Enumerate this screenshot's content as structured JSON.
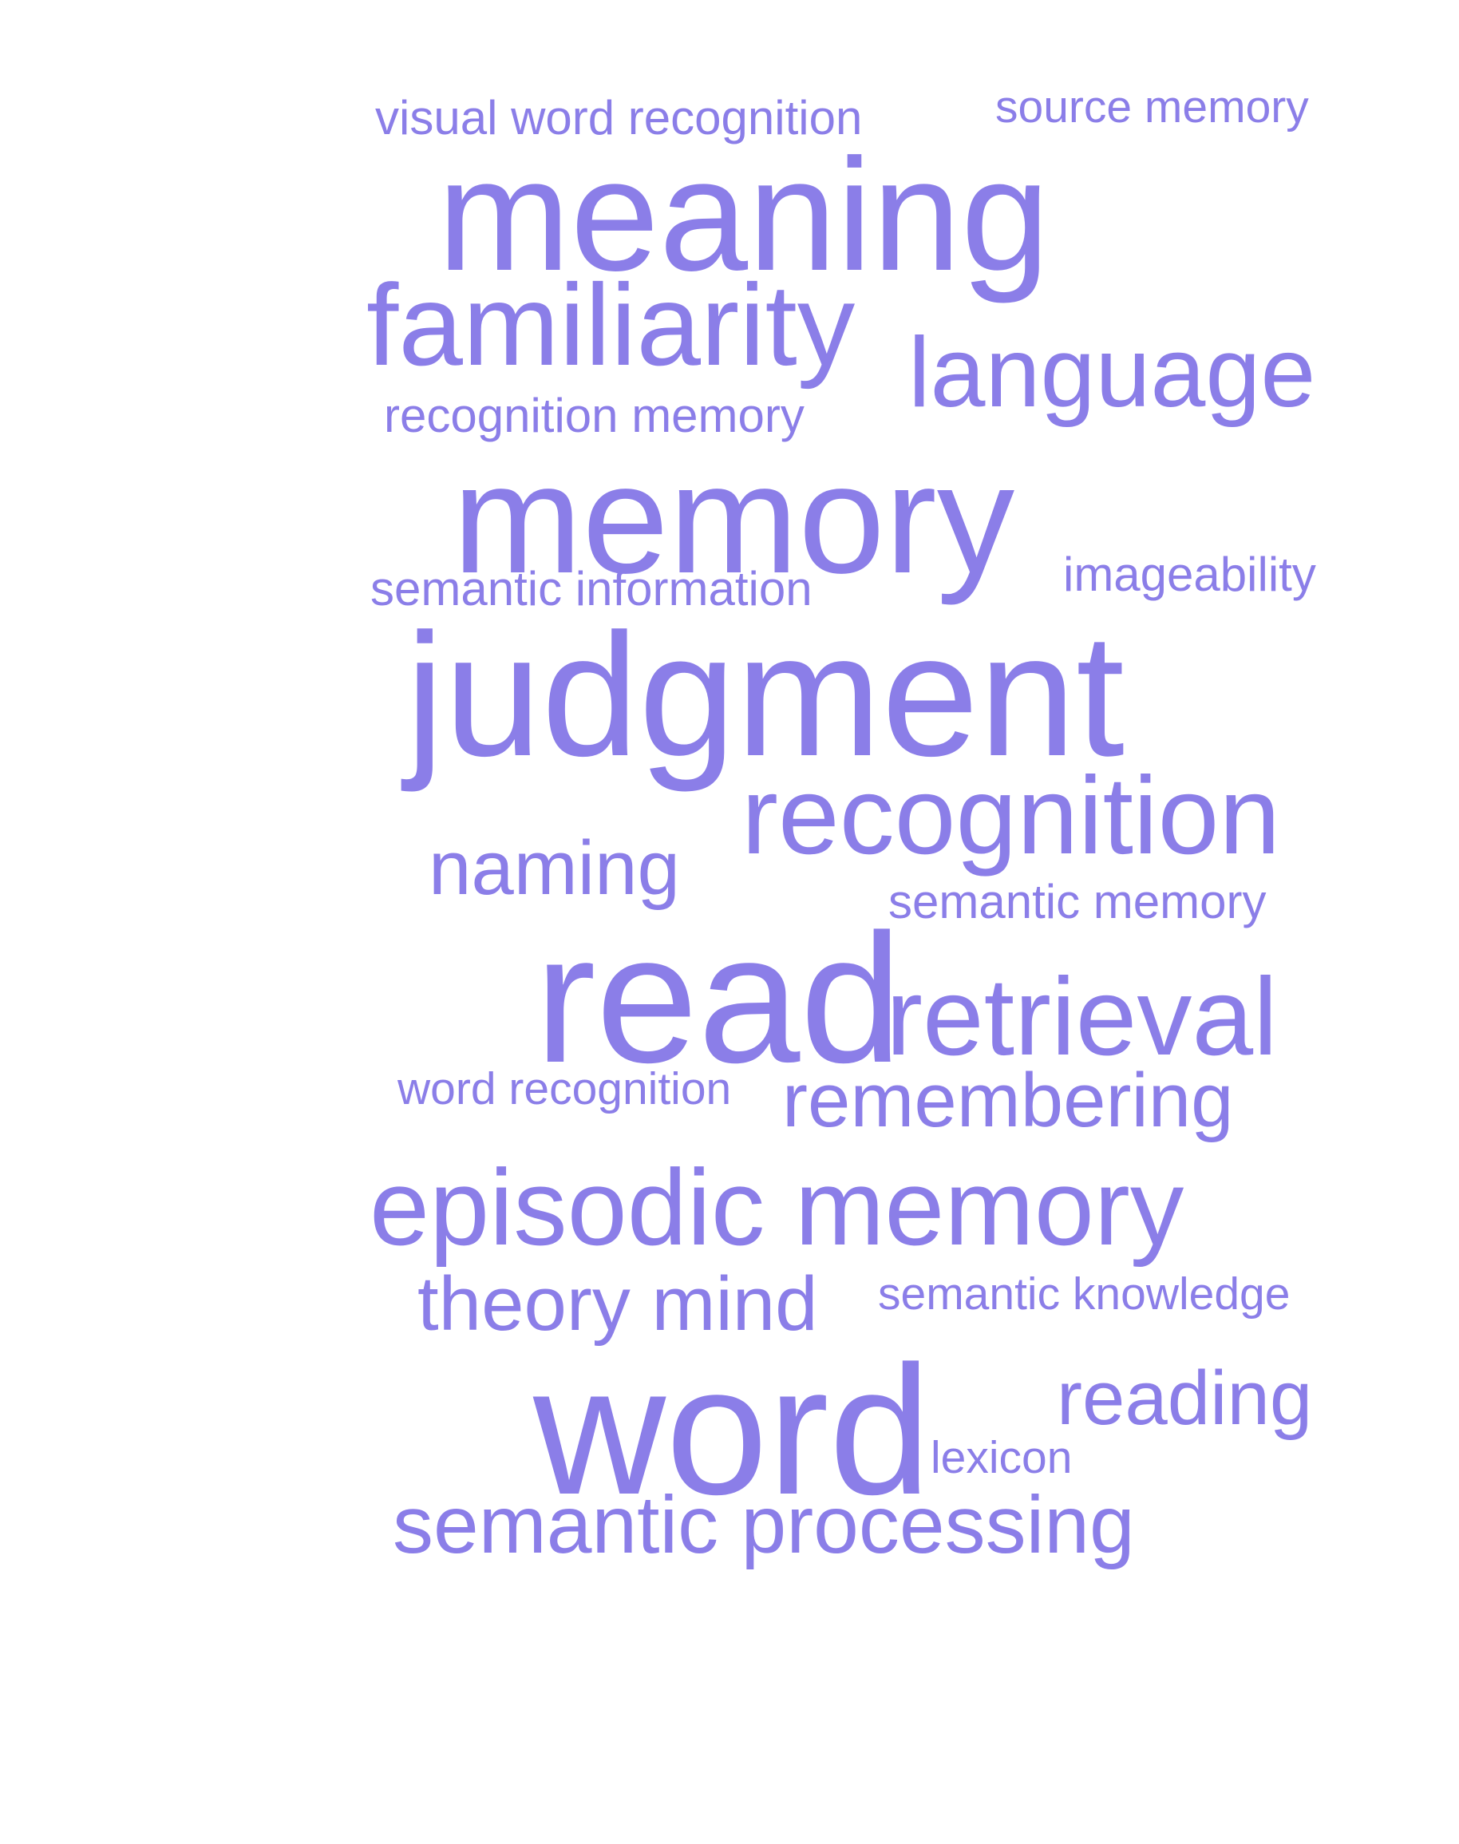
{
  "word_cloud": {
    "color": "#8b7ee8",
    "words": [
      {
        "text": "visual word recognition"
      },
      {
        "text": "source memory"
      },
      {
        "text": "meaning"
      },
      {
        "text": "familiarity"
      },
      {
        "text": "language"
      },
      {
        "text": "recognition memory"
      },
      {
        "text": "memory"
      },
      {
        "text": "semantic information"
      },
      {
        "text": "imageability"
      },
      {
        "text": "judgment"
      },
      {
        "text": "recognition"
      },
      {
        "text": "naming"
      },
      {
        "text": "semantic memory"
      },
      {
        "text": "read"
      },
      {
        "text": "retrieval"
      },
      {
        "text": "word recognition"
      },
      {
        "text": "remembering"
      },
      {
        "text": "episodic memory"
      },
      {
        "text": "theory mind"
      },
      {
        "text": "semantic knowledge"
      },
      {
        "text": "word"
      },
      {
        "text": "reading"
      },
      {
        "text": "lexicon"
      },
      {
        "text": "semantic processing"
      }
    ]
  }
}
